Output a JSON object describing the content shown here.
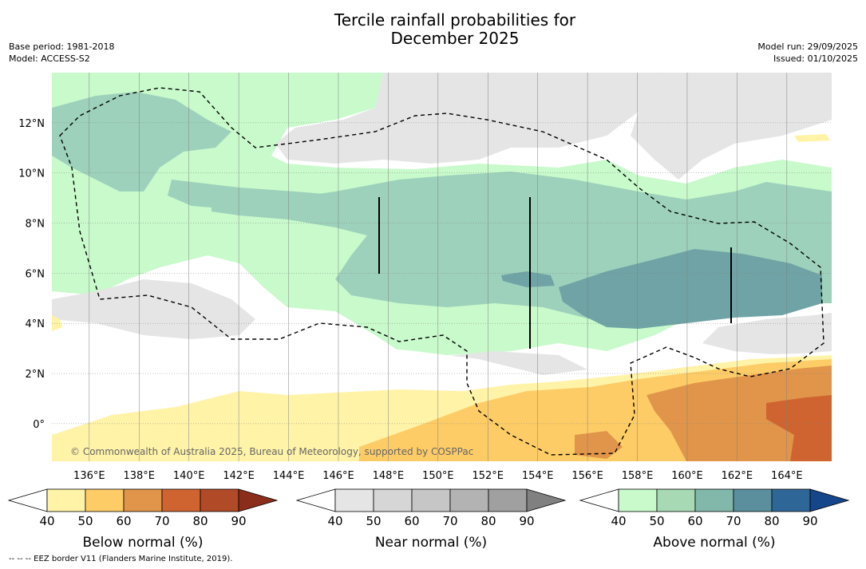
{
  "title_line1": "Tercile rainfall probabilities for",
  "title_line2": "December 2025",
  "meta_left": {
    "base_period": "Base period: 1981-2018",
    "model": "Model: ACCESS-S2"
  },
  "meta_right": {
    "model_run": "Model run: 29/09/2025",
    "issued": "Issued: 01/10/2025"
  },
  "map": {
    "lon_range": [
      134.5,
      165.8
    ],
    "lat_range": [
      -1.5,
      14.0
    ],
    "x_ticks": [
      "136°E",
      "138°E",
      "140°E",
      "142°E",
      "144°E",
      "146°E",
      "148°E",
      "150°E",
      "152°E",
      "154°E",
      "156°E",
      "158°E",
      "160°E",
      "162°E",
      "164°E"
    ],
    "y_ticks": [
      "12°N",
      "10°N",
      "8°N",
      "6°N",
      "4°N",
      "2°N",
      "0°"
    ],
    "copyright": "© Commonwealth of Australia 2025, Bureau of Meteorology, supported by COSPPac"
  },
  "legends": [
    {
      "label": "Below normal (%)",
      "ticks": [
        "40",
        "50",
        "60",
        "70",
        "80",
        "90"
      ],
      "colors": [
        "#fff3a8",
        "#fdcc66",
        "#e0954a",
        "#cf6431",
        "#b04a27",
        "#8c2d1c"
      ]
    },
    {
      "label": "Near normal (%)",
      "ticks": [
        "40",
        "50",
        "60",
        "70",
        "80",
        "90"
      ],
      "colors": [
        "#e5e5e5",
        "#d6d6d6",
        "#c6c6c6",
        "#b3b3b3",
        "#a0a0a0",
        "#808080"
      ]
    },
    {
      "label": "Above normal (%)",
      "ticks": [
        "40",
        "50",
        "60",
        "70",
        "80",
        "90"
      ],
      "colors": [
        "#c8facb",
        "#a6d9b4",
        "#82b8aa",
        "#5b8f9e",
        "#2f6698",
        "#15458a"
      ]
    }
  ],
  "footnote": "--  --  -- EEZ border V11 (Flanders Marine Institute, 2019)."
}
